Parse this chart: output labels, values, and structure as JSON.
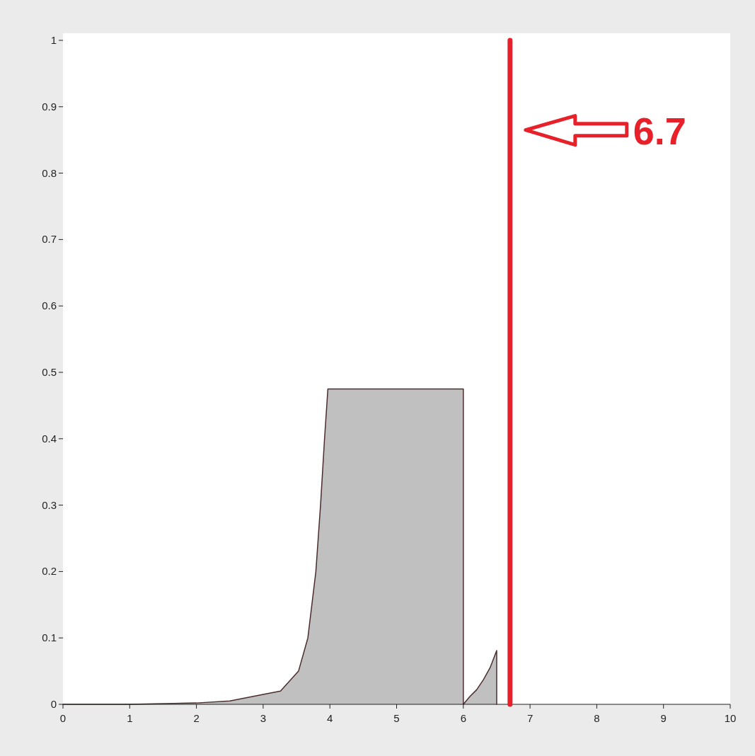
{
  "chart_data": {
    "type": "area",
    "x": [
      0,
      1,
      2,
      2.5,
      3,
      3.26,
      3.53,
      3.67,
      3.79,
      3.86,
      3.92,
      3.97,
      6.0,
      6.0,
      6.1,
      6.2,
      6.3,
      6.4,
      6.5,
      6.5
    ],
    "series": [
      {
        "color": "#c0c0c0",
        "values": [
          0,
          0,
          0.002,
          0.005,
          0.015,
          0.02,
          0.05,
          0.1,
          0.2,
          0.3,
          0.4,
          0.475,
          0.475,
          0,
          0.012,
          0.022,
          0.037,
          0.055,
          0.081,
          0
        ]
      }
    ],
    "xlim": [
      0,
      10
    ],
    "ylim": [
      0,
      1
    ],
    "xticks": [
      0,
      1,
      2,
      3,
      4,
      5,
      6,
      7,
      8,
      9,
      10
    ],
    "yticks": [
      0,
      0.1,
      0.2,
      0.3,
      0.4,
      0.5,
      0.6,
      0.7,
      0.8,
      0.9,
      1
    ],
    "grid": false,
    "ref_lines": [
      {
        "axis": "x",
        "value": 6.7,
        "label": "6.7",
        "color": "#e8202a"
      }
    ]
  }
}
